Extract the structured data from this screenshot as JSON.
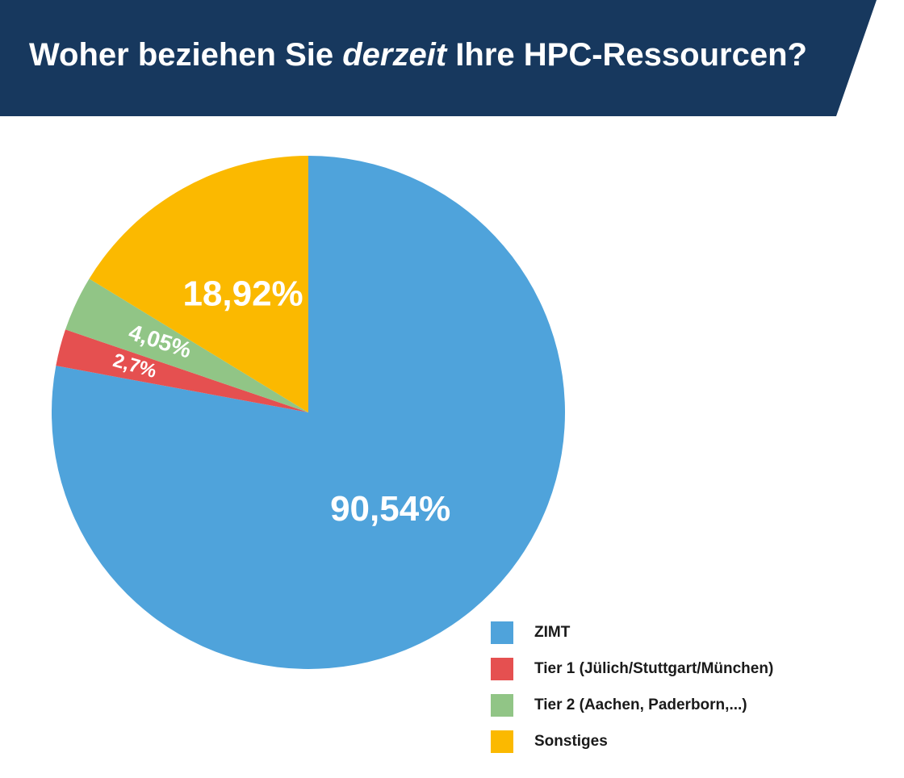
{
  "header": {
    "title_part1": "Woher beziehen Sie ",
    "title_italic": "derzeit",
    "title_part2": " Ihre HPC-Ressourcen?",
    "banner_color": "#17385e",
    "title_color": "#ffffff"
  },
  "chart_data": {
    "type": "pie",
    "title": "Woher beziehen Sie derzeit Ihre HPC-Ressourcen?",
    "slices": [
      {
        "label": "ZIMT",
        "value": 90.54,
        "display": "90,54%",
        "color": "#4fa3db"
      },
      {
        "label": "Tier 1 (Jülich/Stuttgart/München)",
        "value": 2.7,
        "display": "2,7%",
        "color": "#e55050"
      },
      {
        "label": "Tier 2 (Aachen, Paderborn,...)",
        "value": 4.05,
        "display": "4,05%",
        "color": "#91c586"
      },
      {
        "label": "Sonstiges",
        "value": 18.92,
        "display": "18,92%",
        "color": "#fbb900"
      }
    ],
    "legend_position": "bottom-right"
  }
}
